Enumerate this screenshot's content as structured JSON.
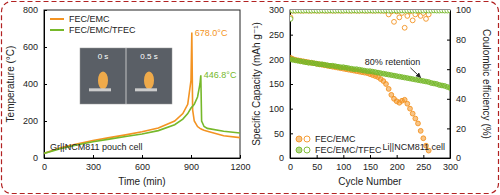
{
  "chart_data": [
    {
      "type": "line",
      "x_label": "Time (min)",
      "y_label": "Temperature (°C)",
      "xlim": [
        0,
        1200
      ],
      "xticks": [
        0,
        300,
        600,
        900,
        1200
      ],
      "ylim": [
        0,
        800
      ],
      "yticks": [
        0,
        200,
        400,
        600,
        800
      ],
      "legend": "upper left",
      "x": [
        0,
        100,
        200,
        300,
        400,
        500,
        600,
        700,
        800,
        850,
        880,
        900,
        905,
        910,
        920,
        940,
        955,
        960,
        965,
        980,
        1000,
        1100,
        1200
      ],
      "series": [
        {
          "name": "FEC/EMC",
          "color": "#f39322",
          "values": [
            25,
            55,
            75,
            95,
            110,
            125,
            142,
            162,
            200,
            240,
            290,
            420,
            678.0,
            260,
            200,
            170,
            160,
            158,
            155,
            150,
            145,
            120,
            110
          ]
        },
        {
          "name": "FEC/EMC/TFEC",
          "color": "#76b82a",
          "values": [
            25,
            50,
            70,
            88,
            102,
            116,
            130,
            148,
            180,
            210,
            240,
            270,
            275,
            280,
            290,
            330,
            400,
            446.8,
            200,
            170,
            160,
            145,
            135
          ]
        }
      ],
      "annotations": [
        "678.0°C",
        "446.8°C",
        "Gr||NCM811 pouch cell",
        "0 s",
        "0.5 s"
      ]
    },
    {
      "type": "scatter",
      "x_label": "Cycle Number",
      "y_label": "Specific Capacity (mAh g⁻¹)",
      "y2_label": "Coulombic efficiency (%)",
      "xlim": [
        0,
        300
      ],
      "xticks": [
        0,
        50,
        100,
        150,
        200,
        250,
        300
      ],
      "ylim": [
        0,
        300
      ],
      "yticks": [
        0,
        50,
        100,
        150,
        200,
        250,
        300
      ],
      "y2lim": [
        0,
        100
      ],
      "y2ticks": [
        0,
        20,
        40,
        60,
        80,
        100
      ],
      "legend": "lower left",
      "x": [
        1,
        5,
        10,
        15,
        20,
        25,
        30,
        35,
        40,
        45,
        50,
        55,
        60,
        65,
        70,
        75,
        80,
        85,
        90,
        95,
        100,
        105,
        110,
        115,
        120,
        125,
        130,
        135,
        140,
        145,
        150,
        155,
        160,
        165,
        170,
        175,
        180,
        185,
        190,
        195,
        200,
        205,
        210,
        215,
        220,
        225,
        230,
        235,
        240,
        245,
        250,
        255,
        260,
        265,
        270,
        275,
        280,
        285,
        290,
        295,
        300
      ],
      "series": [
        {
          "name": "FEC/EMC",
          "color": "#f39322",
          "marker": "circle",
          "values": [
            203,
            201,
            199,
            198,
            197,
            196,
            195,
            194,
            193,
            192,
            191,
            190,
            189,
            188,
            187,
            186,
            185,
            184,
            183,
            182,
            181,
            180,
            179,
            178,
            177,
            176,
            175,
            174,
            173,
            172,
            170,
            168,
            166,
            164,
            160,
            156,
            150,
            140,
            128,
            120,
            115,
            112,
            116,
            118,
            110,
            100,
            90,
            80,
            70,
            55,
            40,
            25,
            15,
            null,
            null,
            null,
            null,
            null,
            null,
            null,
            null
          ]
        },
        {
          "name": "FEC/EMC/TFEC",
          "color": "#76b82a",
          "marker": "circle",
          "values": [
            200,
            199,
            198,
            197,
            196,
            195,
            194,
            193,
            193,
            192,
            191,
            190,
            190,
            189,
            188,
            187,
            187,
            186,
            185,
            184,
            184,
            183,
            182,
            181,
            180,
            180,
            179,
            178,
            177,
            176,
            176,
            175,
            174,
            173,
            172,
            171,
            170,
            169,
            168,
            167,
            166,
            165,
            164,
            163,
            162,
            161,
            160,
            159,
            158,
            157,
            156,
            155,
            154,
            152,
            151,
            150,
            148,
            147,
            146,
            144,
            142
          ]
        },
        {
          "name": "FEC/EMC",
          "color": "#f39322",
          "marker": "open_circle",
          "axis": "y2",
          "values": [
            95,
            99.5,
            99.5,
            99.6,
            99.5,
            99.5,
            99.6,
            99.5,
            99.5,
            99.6,
            99.5,
            99.5,
            99.6,
            99.5,
            99.5,
            99.6,
            99.5,
            99.5,
            99.6,
            99.5,
            99.5,
            99.6,
            99.5,
            99.5,
            99.6,
            99.5,
            99.5,
            99.6,
            99.5,
            99.5,
            99.6,
            99.5,
            99.5,
            99.6,
            99.5,
            99.5,
            99.4,
            97,
            99,
            92,
            99,
            95,
            98,
            88,
            96,
            99,
            93,
            97,
            99,
            96,
            98,
            94,
            97,
            null,
            null,
            null,
            null,
            null,
            null,
            null,
            null
          ]
        },
        {
          "name": "FEC/EMC/TFEC",
          "color": "#76b82a",
          "marker": "open_circle",
          "axis": "y2",
          "values": [
            94,
            99.6,
            99.6,
            99.7,
            99.6,
            99.6,
            99.7,
            99.6,
            99.6,
            99.7,
            99.6,
            99.6,
            99.7,
            99.6,
            99.6,
            99.7,
            99.6,
            99.6,
            99.7,
            99.6,
            99.6,
            99.7,
            99.6,
            99.6,
            99.7,
            99.6,
            99.6,
            99.7,
            99.6,
            99.6,
            99.7,
            99.6,
            99.6,
            99.7,
            99.6,
            99.6,
            99.7,
            99.6,
            99.6,
            99.7,
            99.6,
            99.6,
            99.7,
            99.6,
            99.6,
            99.7,
            99.6,
            99.6,
            99.7,
            99.6,
            99.6,
            99.7,
            99.6,
            99.6,
            99.7,
            99.6,
            99.6,
            99.7,
            99.6,
            99.6,
            99.7
          ]
        }
      ],
      "annotations": [
        "80% retention",
        "Li||NCM811 cell"
      ]
    }
  ]
}
